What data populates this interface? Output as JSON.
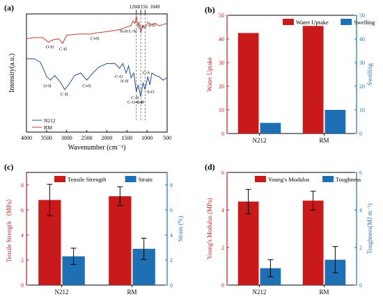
{
  "chart_data": [
    {
      "panel_label": "(a)",
      "type": "line",
      "xlabel": "Wavenumber (cm⁻¹)",
      "ylabel": "Intensity(a.u.)",
      "xlim": [
        4000,
        500
      ],
      "x_ticks": [
        4000,
        3500,
        3000,
        2500,
        2000,
        1500,
        1000,
        500
      ],
      "top_labels": [
        "1266",
        "1156",
        "1049"
      ],
      "vlines": [
        1266,
        1156,
        1049
      ],
      "series": [
        {
          "name": "N212",
          "color": "#1f4e9c",
          "annotations": [
            "O-H",
            "C-H",
            "C≡N",
            "C-O",
            "N-H",
            "C-N",
            "C-O-S-O",
            "C-F",
            "S-O",
            "C-S"
          ],
          "points": [
            [
              4000,
              0.62
            ],
            [
              3800,
              0.62
            ],
            [
              3650,
              0.59
            ],
            [
              3500,
              0.47
            ],
            [
              3400,
              0.44
            ],
            [
              3300,
              0.48
            ],
            [
              3150,
              0.42
            ],
            [
              3050,
              0.36
            ],
            [
              2950,
              0.4
            ],
            [
              2800,
              0.48
            ],
            [
              2650,
              0.5
            ],
            [
              2500,
              0.44
            ],
            [
              2350,
              0.5
            ],
            [
              2200,
              0.55
            ],
            [
              2000,
              0.58
            ],
            [
              1800,
              0.58
            ],
            [
              1680,
              0.54
            ],
            [
              1600,
              0.58
            ],
            [
              1520,
              0.5
            ],
            [
              1460,
              0.56
            ],
            [
              1400,
              0.46
            ],
            [
              1330,
              0.5
            ],
            [
              1266,
              0.34
            ],
            [
              1220,
              0.4
            ],
            [
              1156,
              0.3
            ],
            [
              1100,
              0.42
            ],
            [
              1049,
              0.36
            ],
            [
              980,
              0.47
            ],
            [
              930,
              0.4
            ],
            [
              880,
              0.5
            ],
            [
              800,
              0.48
            ],
            [
              700,
              0.47
            ],
            [
              600,
              0.44
            ],
            [
              500,
              0.46
            ]
          ]
        },
        {
          "name": "RM",
          "color": "#c0392b",
          "annotations": [
            "O-H",
            "C-H",
            "C≡N",
            "N-H",
            "C-N",
            "C-F",
            "S-O"
          ],
          "points": [
            [
              4000,
              0.79
            ],
            [
              3800,
              0.8
            ],
            [
              3600,
              0.8
            ],
            [
              3450,
              0.76
            ],
            [
              3350,
              0.78
            ],
            [
              3200,
              0.79
            ],
            [
              3100,
              0.75
            ],
            [
              3000,
              0.82
            ],
            [
              2700,
              0.83
            ],
            [
              2400,
              0.83
            ],
            [
              2250,
              0.84
            ],
            [
              2000,
              0.85
            ],
            [
              1800,
              0.86
            ],
            [
              1650,
              0.87
            ],
            [
              1500,
              0.89
            ],
            [
              1400,
              0.9
            ],
            [
              1350,
              0.94
            ],
            [
              1300,
              0.92
            ],
            [
              1266,
              0.98
            ],
            [
              1230,
              0.9
            ],
            [
              1200,
              0.93
            ],
            [
              1156,
              0.84
            ],
            [
              1110,
              0.9
            ],
            [
              1049,
              0.88
            ],
            [
              980,
              0.93
            ],
            [
              900,
              0.91
            ],
            [
              800,
              0.92
            ],
            [
              700,
              0.9
            ],
            [
              600,
              0.91
            ],
            [
              500,
              0.92
            ]
          ]
        }
      ]
    },
    {
      "panel_label": "(b)",
      "type": "bar",
      "categories": [
        "N212",
        "RM"
      ],
      "ylabel": "Water Uptake",
      "ylabel_right": "Swelling",
      "ylim": [
        0,
        50
      ],
      "ylim_right": [
        0,
        50
      ],
      "y_ticks": [
        0,
        10,
        20,
        30,
        40,
        50
      ],
      "y_ticks_right": [
        0,
        10,
        20,
        30,
        40,
        50
      ],
      "series": [
        {
          "name": "Water Uptake",
          "axis": "left",
          "color": "#c8191b",
          "values": [
            42.5,
            45.5
          ]
        },
        {
          "name": "Swelling",
          "axis": "right",
          "color": "#1f6fb5",
          "values": [
            4.5,
            10
          ]
        }
      ]
    },
    {
      "panel_label": "(c)",
      "type": "bar",
      "categories": [
        "N212",
        "RM"
      ],
      "ylabel": "Tensile Strength （MPa）",
      "ylabel_right": "Strain (%)",
      "ylim": [
        0,
        9
      ],
      "ylim_right": [
        0,
        9
      ],
      "y_ticks": [
        0,
        2,
        4,
        6,
        8
      ],
      "y_ticks_right": [
        0,
        2,
        4,
        6,
        8
      ],
      "series": [
        {
          "name": "Tensile Strength",
          "axis": "left",
          "color": "#c8191b",
          "values": [
            6.8,
            7.1
          ],
          "errors": [
            1.25,
            0.75
          ]
        },
        {
          "name": "Strain",
          "axis": "right",
          "color": "#1f6fb5",
          "values": [
            2.3,
            2.9
          ],
          "errors": [
            0.65,
            0.85
          ]
        }
      ]
    },
    {
      "panel_label": "(d)",
      "type": "bar",
      "categories": [
        "N212",
        "RM"
      ],
      "ylabel": "Young's Modulus (MPa)",
      "ylabel_right": "Toughness(MJ m⁻³)",
      "ylim": [
        0,
        6
      ],
      "ylim_right": [
        0,
        6
      ],
      "y_ticks": [
        0,
        2,
        4,
        6
      ],
      "y_ticks_right": [
        0,
        2,
        4,
        6
      ],
      "series": [
        {
          "name": "Young's Modulus",
          "axis": "left",
          "color": "#c8191b",
          "values": [
            4.45,
            4.5
          ],
          "errors": [
            0.65,
            0.5
          ]
        },
        {
          "name": "Toughness",
          "axis": "right",
          "color": "#1f6fb5",
          "values": [
            0.9,
            1.35
          ],
          "errors": [
            0.45,
            0.7
          ]
        }
      ]
    }
  ]
}
